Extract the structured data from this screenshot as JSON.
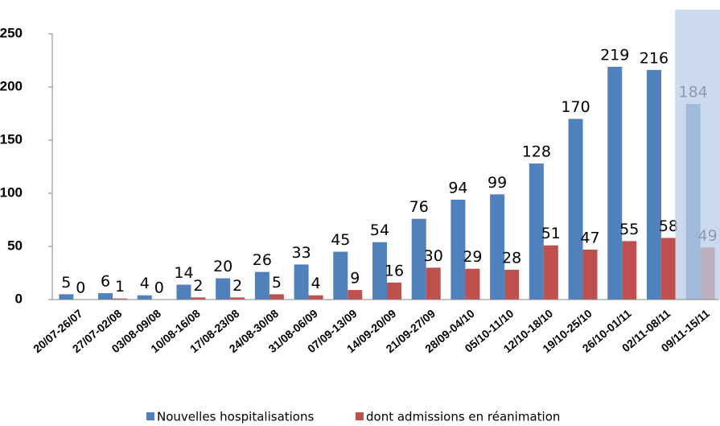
{
  "chart_data": {
    "type": "bar",
    "categories": [
      "20/07-26/07",
      "27/07-02/08",
      "03/08-09/08",
      "10/08-16/08",
      "17/08-23/08",
      "24/08-30/08",
      "31/08-06/09",
      "07/09-13/09",
      "14/09-20/09",
      "21/09-27/09",
      "28/09-04/10",
      "05/10-11/10",
      "12/10-18/10",
      "19/10-25/10",
      "26/10-01/11",
      "02/11-08/11",
      "09/11-15/11"
    ],
    "series": [
      {
        "name": "Nouvelles hospitalisations",
        "color": "#4f81bd",
        "values": [
          5,
          6,
          4,
          14,
          20,
          26,
          33,
          45,
          54,
          76,
          94,
          99,
          128,
          170,
          219,
          216,
          184
        ]
      },
      {
        "name": "dont admissions en réanimation",
        "color": "#c0504d",
        "values": [
          0,
          1,
          0,
          2,
          2,
          5,
          4,
          9,
          16,
          30,
          29,
          28,
          51,
          47,
          55,
          58,
          49
        ]
      }
    ],
    "ylim": [
      0,
      250
    ],
    "yticks": [
      0,
      50,
      100,
      150,
      200,
      250
    ],
    "grid": false,
    "legend": "bottom"
  }
}
